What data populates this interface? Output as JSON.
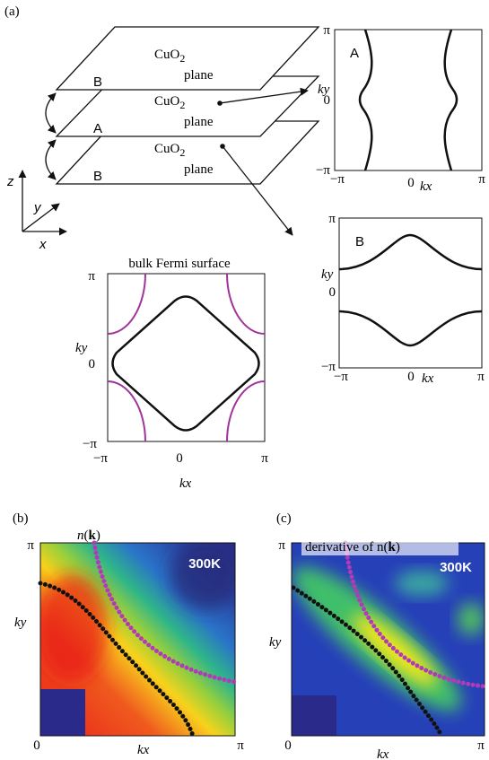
{
  "panel_a": {
    "label": "(a)",
    "layers": [
      {
        "letter": "B",
        "formula": "CuO",
        "subscript": "2",
        "word": "plane"
      },
      {
        "letter": "A",
        "formula": "CuO",
        "subscript": "2",
        "word": "plane"
      },
      {
        "letter": "B",
        "formula": "CuO",
        "subscript": "2",
        "word": "plane"
      }
    ],
    "axes": {
      "z": "z",
      "y": "y",
      "x": "x"
    },
    "inset_A": {
      "letter": "A",
      "yticks": [
        "π",
        "0",
        "−π"
      ],
      "xticks": [
        "−π",
        "0",
        "π"
      ],
      "ylabel": "ky",
      "xlabel": "kx"
    },
    "inset_B": {
      "letter": "B",
      "yticks": [
        "π",
        "0",
        "−π"
      ],
      "xticks": [
        "−π",
        "0",
        "π"
      ],
      "ylabel": "ky",
      "xlabel": "kx"
    },
    "bulk": {
      "title": "bulk Fermi surface",
      "yticks": [
        "π",
        "0",
        "−π"
      ],
      "xticks": [
        "−π",
        "0",
        "π"
      ],
      "ylabel": "ky",
      "xlabel": "kx"
    }
  },
  "panel_b": {
    "label": "(b)",
    "title_parts": [
      "n",
      "(",
      "k",
      ")"
    ],
    "temperature": "300K",
    "ytick": "π",
    "origin": "0",
    "xtick": "π",
    "ylabel": "ky",
    "xlabel": "kx"
  },
  "panel_c": {
    "label": "(c)",
    "title_parts": [
      "derivative of n",
      "(",
      "k",
      ")"
    ],
    "temperature": "300K",
    "ytick": "π",
    "origin": "0",
    "xtick": "π",
    "ylabel": "ky",
    "xlabel": "kx"
  }
}
